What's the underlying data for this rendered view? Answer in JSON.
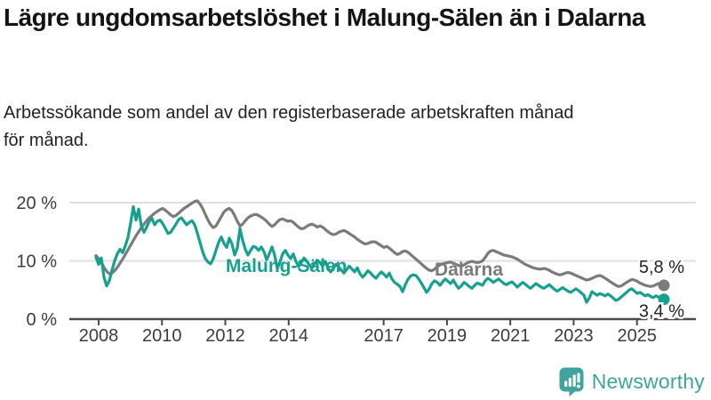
{
  "header": {
    "title": "Lägre ungdomsarbetslöshet i Malung-Sälen än i Dalarna",
    "subtitle": "Arbetssökande som andel av den registerbaserade arbetskraften månad för månad."
  },
  "footer": {
    "brand": "Newsworthy"
  },
  "colors": {
    "malung_salen": "#17a08f",
    "dalarna": "#7b7b7b",
    "axis": "#4a4a4a",
    "grid": "#e0e0e0",
    "tick_text": "#3c3c3c",
    "brand_teal": "#3fa3a0",
    "end_label_text": "#242424"
  },
  "chart_data": {
    "type": "line",
    "frequency": "monthly",
    "x_start": "2008-01",
    "x_end": "2025-10",
    "x_tick_years": [
      2008,
      2010,
      2012,
      2014,
      2017,
      2019,
      2021,
      2023,
      2025
    ],
    "y_ticks": [
      {
        "value": 0,
        "label": "0 %"
      },
      {
        "value": 10,
        "label": "10 %"
      },
      {
        "value": 20,
        "label": "20 %"
      }
    ],
    "ylim": [
      0,
      23
    ],
    "grid": "horizontal",
    "legend_position": "inline-labels-on-lines",
    "series": [
      {
        "name": "Dalarna",
        "color": "#7b7b7b",
        "end_label": "5,8 %",
        "end_value": 5.8,
        "values": [
          10.9,
          10.4,
          9.7,
          8.9,
          8.2,
          7.8,
          7.9,
          8.3,
          8.9,
          9.6,
          10.3,
          11.1,
          11.9,
          12.7,
          13.5,
          14.3,
          15.0,
          15.7,
          16.3,
          16.9,
          17.4,
          17.8,
          18.2,
          18.5,
          18.8,
          19.0,
          18.7,
          18.3,
          17.9,
          17.6,
          17.8,
          18.2,
          18.6,
          19.0,
          19.3,
          19.6,
          19.9,
          20.2,
          20.3,
          19.8,
          19.0,
          18.0,
          17.0,
          16.2,
          15.7,
          16.0,
          16.8,
          17.6,
          18.4,
          18.8,
          19.0,
          18.6,
          17.8,
          16.8,
          16.0,
          16.3,
          16.9,
          17.4,
          17.7,
          17.9,
          18.0,
          17.8,
          17.5,
          17.2,
          16.8,
          16.3,
          15.9,
          16.2,
          16.7,
          17.1,
          17.2,
          17.0,
          16.8,
          16.9,
          16.6,
          16.2,
          15.8,
          15.5,
          15.6,
          15.9,
          16.2,
          16.3,
          16.1,
          15.8,
          16.0,
          15.8,
          15.4,
          15.0,
          14.7,
          14.5,
          14.6,
          14.9,
          15.1,
          15.2,
          15.0,
          14.7,
          14.4,
          14.1,
          13.7,
          13.4,
          13.1,
          12.9,
          13.0,
          13.2,
          13.3,
          13.2,
          12.9,
          12.6,
          12.3,
          12.5,
          12.2,
          11.8,
          11.4,
          11.1,
          11.3,
          11.6,
          11.7,
          11.5,
          11.1,
          10.7,
          10.3,
          9.9,
          9.5,
          9.1,
          8.7,
          8.4,
          8.3,
          8.6,
          9.0,
          9.3,
          9.5,
          9.6,
          9.7,
          9.8,
          9.6,
          9.4,
          9.2,
          9.1,
          9.3,
          9.6,
          9.8,
          9.9,
          9.8,
          9.7,
          9.8,
          10.0,
          10.6,
          11.3,
          11.7,
          11.8,
          11.6,
          11.4,
          11.2,
          11.0,
          10.9,
          10.8,
          10.7,
          10.5,
          10.3,
          10.0,
          9.7,
          9.4,
          9.2,
          9.0,
          8.8,
          8.7,
          8.6,
          8.6,
          8.7,
          8.6,
          8.4,
          8.1,
          7.9,
          7.7,
          7.6,
          7.7,
          7.9,
          8.0,
          7.9,
          7.7,
          7.5,
          7.3,
          7.1,
          6.9,
          6.7,
          6.8,
          7.0,
          7.2,
          7.4,
          7.5,
          7.3,
          7.0,
          6.7,
          6.4,
          6.1,
          5.8,
          5.6,
          5.7,
          6.0,
          6.3,
          6.6,
          6.8,
          6.7,
          6.5,
          6.2,
          6.0,
          5.8,
          5.7,
          5.6,
          5.7,
          5.9,
          6.1,
          6.0,
          5.8
        ]
      },
      {
        "name": "Malung-Sälen",
        "color": "#17a08f",
        "end_label": "3,4 %",
        "end_value": 3.4,
        "values": [
          10.6,
          9.4,
          10.5,
          7.2,
          5.7,
          6.6,
          8.4,
          10.0,
          11.2,
          12.0,
          11.4,
          12.6,
          14.0,
          16.5,
          19.3,
          17.0,
          18.9,
          16.0,
          14.9,
          15.8,
          16.8,
          17.3,
          16.2,
          16.8,
          17.0,
          16.4,
          15.6,
          14.7,
          14.9,
          15.6,
          16.3,
          17.1,
          17.4,
          16.8,
          16.2,
          16.6,
          16.9,
          16.2,
          14.8,
          13.2,
          11.6,
          10.4,
          9.8,
          9.5,
          10.4,
          11.8,
          13.2,
          14.1,
          13.0,
          12.3,
          13.9,
          12.9,
          11.0,
          12.2,
          15.6,
          13.5,
          12.0,
          11.0,
          11.8,
          12.5,
          12.3,
          11.8,
          12.4,
          11.6,
          10.2,
          11.2,
          12.4,
          11.0,
          8.7,
          9.8,
          11.2,
          11.8,
          11.0,
          10.4,
          11.2,
          9.9,
          9.0,
          9.7,
          10.5,
          10.0,
          9.3,
          8.8,
          9.5,
          10.1,
          9.7,
          9.1,
          9.9,
          8.8,
          8.1,
          8.7,
          9.4,
          9.0,
          8.4,
          7.9,
          8.5,
          9.1,
          8.6,
          8.1,
          8.8,
          7.8,
          7.2,
          7.7,
          8.3,
          7.9,
          7.4,
          7.0,
          7.6,
          8.1,
          7.7,
          7.2,
          7.9,
          6.9,
          6.3,
          6.0,
          5.6,
          4.7,
          5.9,
          6.8,
          7.4,
          7.6,
          7.5,
          6.9,
          6.2,
          5.4,
          4.6,
          5.2,
          6.1,
          6.6,
          6.3,
          5.8,
          6.4,
          6.9,
          6.5,
          6.1,
          6.7,
          5.9,
          5.3,
          5.7,
          6.3,
          6.0,
          5.6,
          5.3,
          5.8,
          6.2,
          6.0,
          5.8,
          6.6,
          7.0,
          6.7,
          6.3,
          6.6,
          6.9,
          6.5,
          6.1,
          5.9,
          6.2,
          6.4,
          6.0,
          5.5,
          5.9,
          6.3,
          6.0,
          5.6,
          5.3,
          5.7,
          6.1,
          5.8,
          5.5,
          5.3,
          5.6,
          5.9,
          5.5,
          5.1,
          4.8,
          5.1,
          5.4,
          5.1,
          4.8,
          4.6,
          4.9,
          5.2,
          4.9,
          4.5,
          4.1,
          2.9,
          3.6,
          4.7,
          4.4,
          4.1,
          4.4,
          4.2,
          4.0,
          4.3,
          4.0,
          3.6,
          3.2,
          3.4,
          3.8,
          4.2,
          4.6,
          5.0,
          5.2,
          4.8,
          4.4,
          4.6,
          4.3,
          4.0,
          4.2,
          3.9,
          3.7,
          4.0,
          3.8,
          3.6,
          3.4
        ]
      }
    ]
  }
}
